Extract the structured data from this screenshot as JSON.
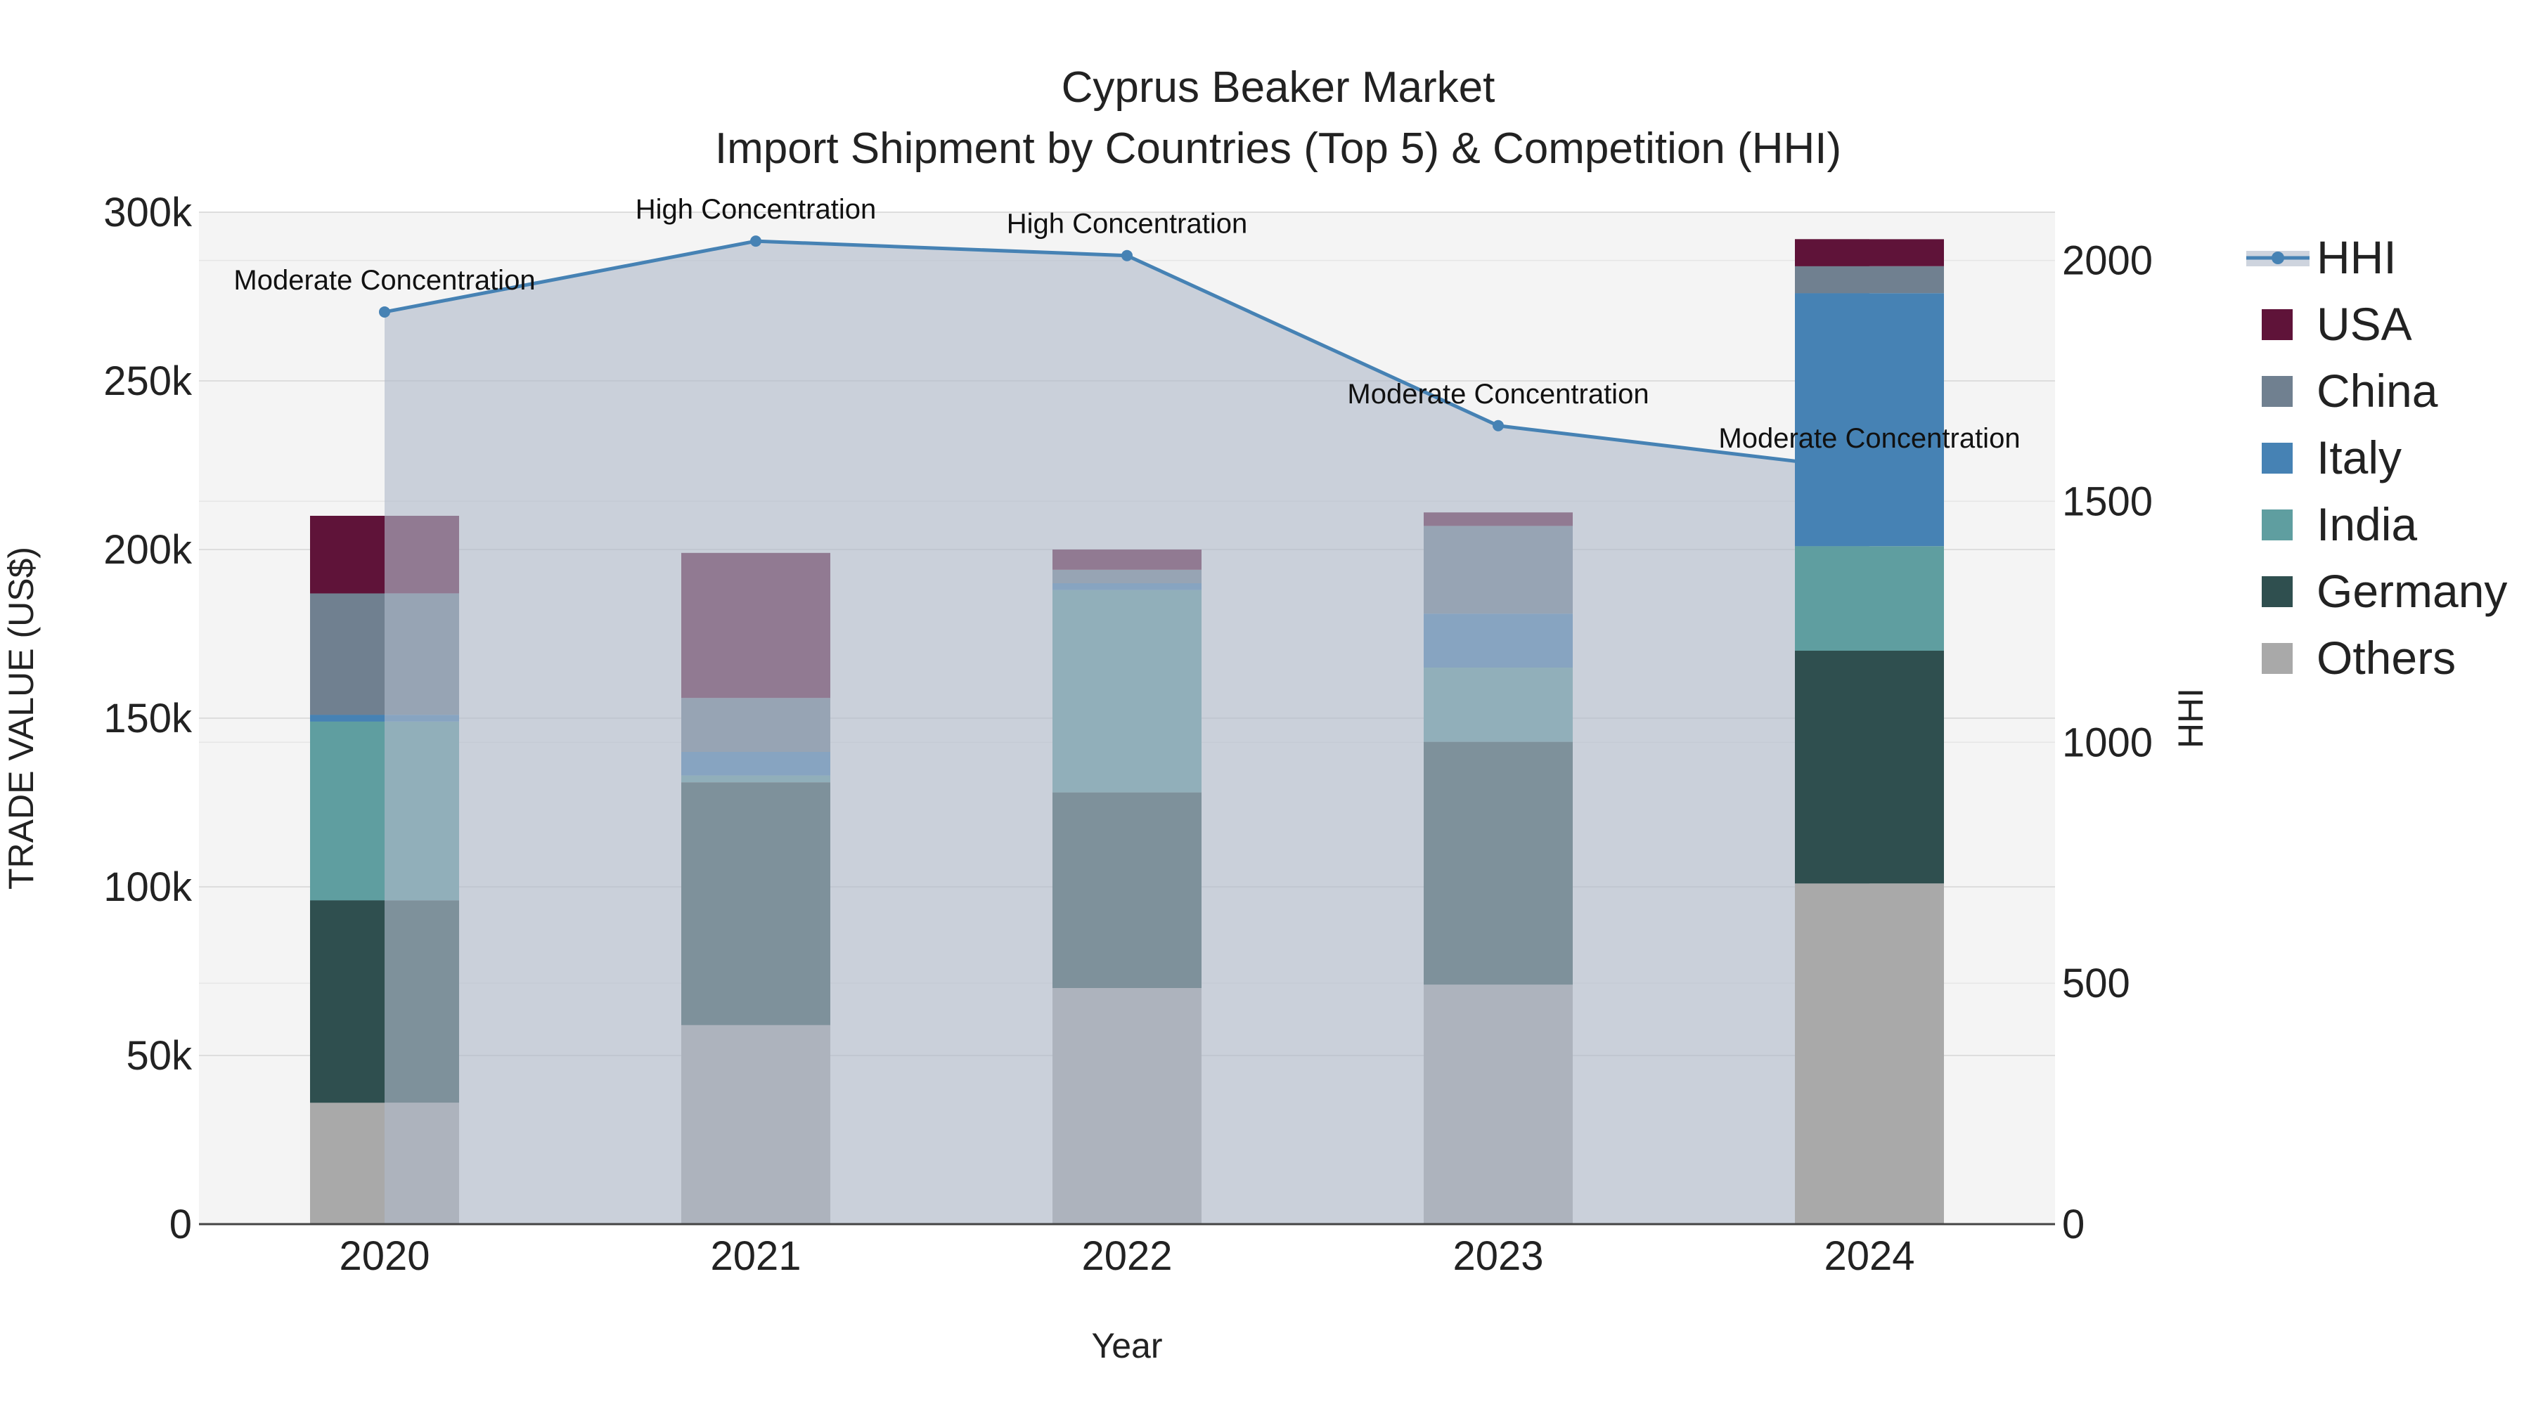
{
  "chart_data": {
    "type": "bar",
    "title": "Cyprus Beaker Market",
    "subtitle": "Import Shipment by Countries (Top 5) & Competition (HHI)",
    "xlabel": "Year",
    "ylabel": "TRADE VALUE (US$)",
    "y2label": "HHI",
    "categories": [
      "2020",
      "2021",
      "2022",
      "2023",
      "2024"
    ],
    "ylim": [
      0,
      300000
    ],
    "y2lim": [
      0,
      2100
    ],
    "yticks": [
      {
        "value": 0,
        "label": "0"
      },
      {
        "value": 50000,
        "label": "50k"
      },
      {
        "value": 100000,
        "label": "100k"
      },
      {
        "value": 150000,
        "label": "150k"
      },
      {
        "value": 200000,
        "label": "200k"
      },
      {
        "value": 250000,
        "label": "250k"
      },
      {
        "value": 300000,
        "label": "300k"
      }
    ],
    "y2ticks": [
      {
        "value": 0,
        "label": "0"
      },
      {
        "value": 500,
        "label": "500"
      },
      {
        "value": 1000,
        "label": "1000"
      },
      {
        "value": 1500,
        "label": "1500"
      },
      {
        "value": 2000,
        "label": "2000"
      }
    ],
    "series": [
      {
        "name": "Others",
        "color": "#a9a9a9",
        "values": [
          36000,
          59000,
          70000,
          71000,
          101000
        ]
      },
      {
        "name": "Germany",
        "color": "#2f4f4f",
        "values": [
          60000,
          72000,
          58000,
          72000,
          69000
        ]
      },
      {
        "name": "India",
        "color": "#5f9ea0",
        "values": [
          53000,
          2000,
          60000,
          22000,
          31000
        ]
      },
      {
        "name": "Italy",
        "color": "#4682b4",
        "values": [
          2000,
          7000,
          2000,
          16000,
          75000
        ]
      },
      {
        "name": "China",
        "color": "#708090",
        "values": [
          36000,
          16000,
          4000,
          26000,
          8000
        ]
      },
      {
        "name": "USA",
        "color": "#5f1339",
        "values": [
          23000,
          43000,
          6000,
          4000,
          8000
        ]
      }
    ],
    "hhi": {
      "name": "HHI",
      "color": "#4682b4",
      "values": [
        1893,
        2040,
        2010,
        1657,
        1565
      ],
      "labels": [
        "Moderate Concentration",
        "High Concentration",
        "High Concentration",
        "Moderate Concentration",
        "Moderate Concentration"
      ]
    },
    "legend_position": "right",
    "legend": [
      "HHI",
      "USA",
      "China",
      "Italy",
      "India",
      "Germany",
      "Others"
    ]
  }
}
